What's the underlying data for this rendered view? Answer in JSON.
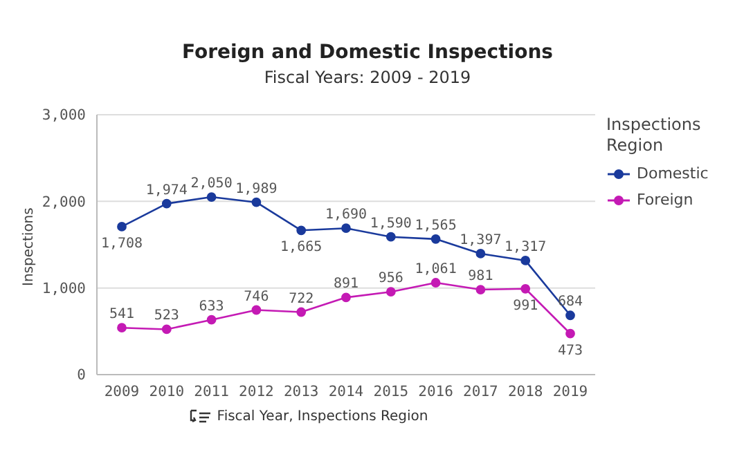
{
  "chart_data": {
    "type": "line",
    "title": "Foreign and Domestic Inspections",
    "subtitle": "Fiscal Years: 2009 - 2019",
    "xlabel": "Fiscal Year, Inspections Region",
    "ylabel": "Inspections",
    "legend_title": "Inspections Region",
    "categories": [
      "2009",
      "2010",
      "2011",
      "2012",
      "2013",
      "2014",
      "2015",
      "2016",
      "2017",
      "2018",
      "2019"
    ],
    "series": [
      {
        "name": "Domestic",
        "color": "#1a3a9c",
        "values": [
          1708,
          1974,
          2050,
          1989,
          1665,
          1690,
          1590,
          1565,
          1397,
          1317,
          684
        ],
        "value_labels": [
          "1,708",
          "1,974",
          "2,050",
          "1,989",
          "1,665",
          "1,690",
          "1,590",
          "1,565",
          "1,397",
          "1,317",
          "684"
        ]
      },
      {
        "name": "Foreign",
        "color": "#c41ab4",
        "values": [
          541,
          523,
          633,
          746,
          722,
          891,
          956,
          1061,
          981,
          991,
          473
        ],
        "value_labels": [
          "541",
          "523",
          "633",
          "746",
          "722",
          "891",
          "956",
          "1,061",
          "981",
          "991",
          "473"
        ]
      }
    ],
    "ylim": [
      0,
      3000
    ],
    "yticks": [
      {
        "value": 0,
        "label": "0"
      },
      {
        "value": 1000,
        "label": "1,000"
      },
      {
        "value": 2000,
        "label": "2,000"
      },
      {
        "value": 3000,
        "label": "3,000"
      }
    ],
    "grid": "y",
    "legend": "top right",
    "marker": "circle",
    "line_style": "solid"
  }
}
